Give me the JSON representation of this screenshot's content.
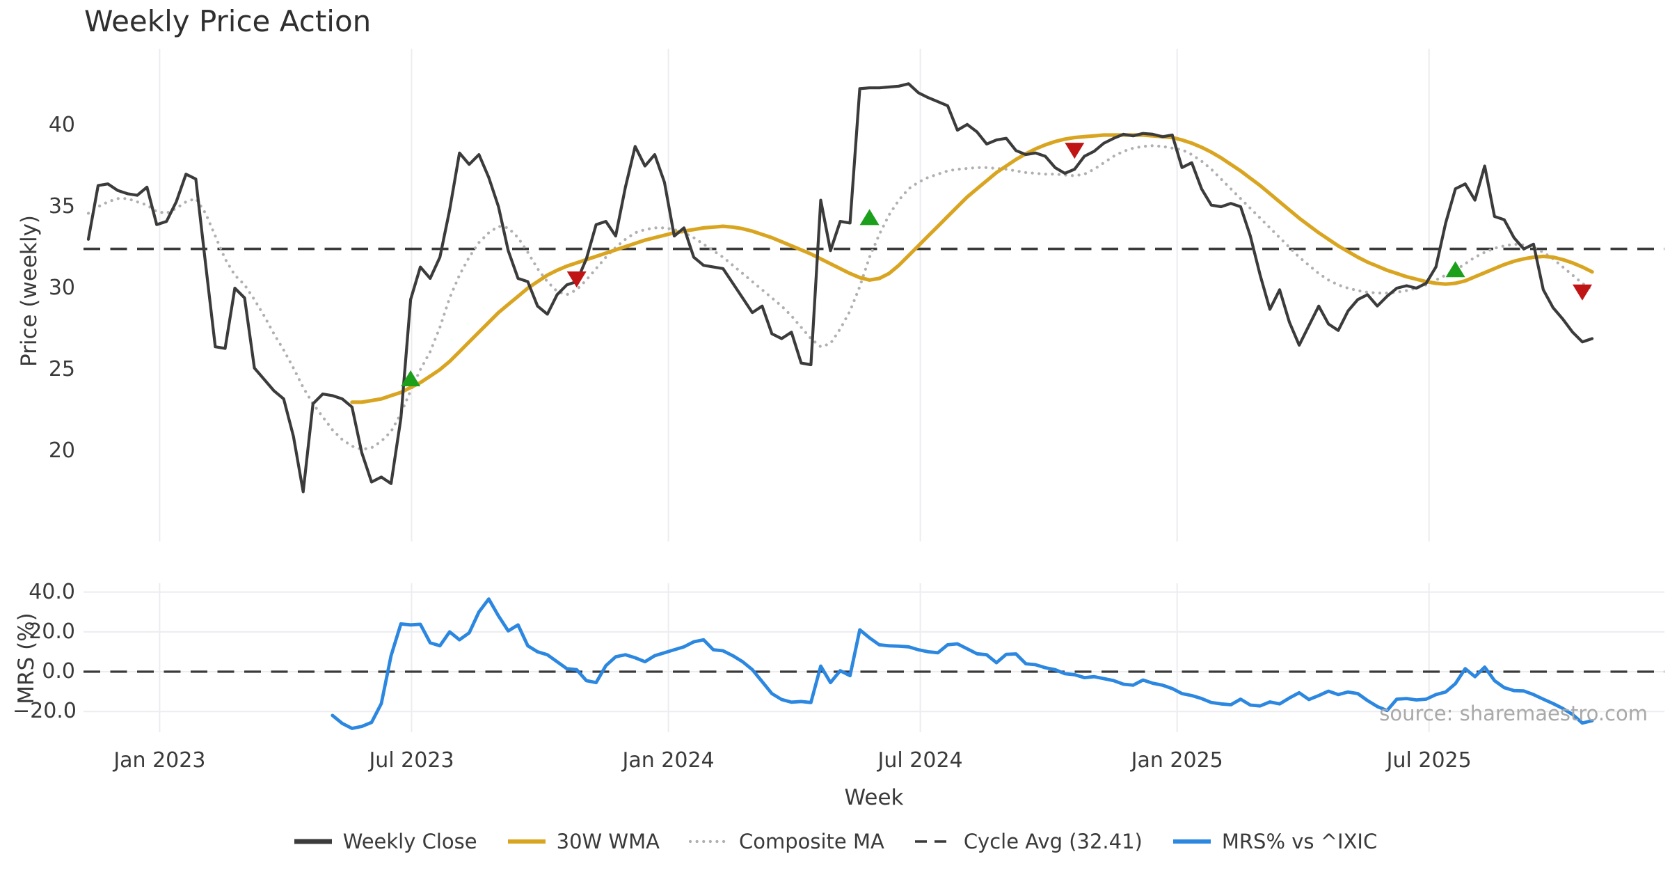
{
  "title": "Weekly Price Action",
  "source_note": "source: sharemaestro.com",
  "colors": {
    "weekly_close": "#3b3b3b",
    "wma_30w": "#d9a521",
    "composite_ma": "#b0b0b0",
    "cycle_avg": "#3a3a3a",
    "mrs": "#2b87e0",
    "buy_signal": "#1ca01c",
    "sell_signal": "#c01515",
    "gridline": "#ececf1",
    "source_text": "#a9a9a9"
  },
  "chart_data": {
    "type": "line",
    "title": "Weekly Price Action",
    "xlabel": "Week",
    "n_weeks": 155,
    "x_ticks": [
      {
        "week": 7.3,
        "label": "Jan 2023"
      },
      {
        "week": 33.1,
        "label": "Jul 2023"
      },
      {
        "week": 59.4,
        "label": "Jan 2024"
      },
      {
        "week": 85.2,
        "label": "Jul 2024"
      },
      {
        "week": 111.5,
        "label": "Jan 2025"
      },
      {
        "week": 137.3,
        "label": "Jul 2025"
      }
    ],
    "panels": [
      {
        "name": "price",
        "ylabel": "Price (weekly)",
        "ylim": [
          14.4,
          44.7
        ],
        "y_ticks": [
          {
            "v": 20,
            "label": "20"
          },
          {
            "v": 25,
            "label": "25"
          },
          {
            "v": 30,
            "label": "30"
          },
          {
            "v": 35,
            "label": "35"
          },
          {
            "v": 40,
            "label": "40"
          }
        ],
        "cycle_avg": 32.41,
        "grid": "vertical-only",
        "series": [
          {
            "name": "Weekly Close",
            "style": "solid",
            "start_week": 0,
            "values": [
              33.0,
              36.3,
              36.4,
              36.0,
              35.8,
              35.7,
              36.2,
              33.9,
              34.1,
              35.3,
              37.0,
              36.7,
              31.5,
              26.4,
              26.3,
              30.0,
              29.4,
              25.1,
              24.4,
              23.7,
              23.2,
              20.9,
              17.5,
              22.9,
              23.5,
              23.4,
              23.2,
              22.7,
              19.9,
              18.1,
              18.4,
              18.0,
              22.0,
              29.3,
              31.3,
              30.6,
              31.9,
              34.8,
              38.3,
              37.6,
              38.2,
              36.8,
              35.0,
              32.3,
              30.6,
              30.4,
              28.9,
              28.4,
              29.6,
              30.2,
              30.4,
              31.8,
              33.9,
              34.1,
              33.2,
              36.2,
              38.7,
              37.5,
              38.2,
              36.5,
              33.2,
              33.7,
              31.9,
              31.4,
              31.3,
              31.2,
              30.3,
              29.4,
              28.5,
              28.9,
              27.2,
              26.9,
              27.3,
              25.4,
              25.3,
              35.4,
              32.3,
              34.1,
              34.0,
              42.25,
              42.3,
              42.3,
              42.35,
              42.4,
              42.55,
              42.0,
              41.7,
              41.45,
              41.2,
              39.7,
              40.05,
              39.6,
              38.85,
              39.1,
              39.2,
              38.45,
              38.2,
              38.3,
              38.1,
              37.4,
              37.05,
              37.3,
              38.1,
              38.4,
              38.9,
              39.2,
              39.45,
              39.35,
              39.5,
              39.45,
              39.3,
              39.4,
              37.4,
              37.7,
              36.1,
              35.1,
              35.0,
              35.2,
              35.0,
              33.2,
              30.8,
              28.7,
              29.9,
              27.9,
              26.5,
              27.7,
              28.9,
              27.8,
              27.4,
              28.6,
              29.3,
              29.6,
              28.9,
              29.5,
              30.0,
              30.15,
              30.0,
              30.3,
              31.3,
              34.0,
              36.1,
              36.4,
              35.4,
              37.5,
              34.4,
              34.2,
              33.1,
              32.4,
              32.7,
              29.9,
              28.8,
              28.1,
              27.3,
              26.7,
              26.9
            ]
          },
          {
            "name": "30W WMA",
            "style": "solid",
            "start_week": 27,
            "values": [
              23.0,
              23.0,
              23.1,
              23.2,
              23.4,
              23.6,
              23.9,
              24.2,
              24.6,
              25.0,
              25.5,
              26.1,
              26.7,
              27.3,
              27.9,
              28.5,
              29.0,
              29.5,
              30.0,
              30.4,
              30.8,
              31.1,
              31.35,
              31.55,
              31.75,
              31.95,
              32.15,
              32.35,
              32.55,
              32.75,
              32.95,
              33.1,
              33.25,
              33.4,
              33.5,
              33.6,
              33.7,
              33.75,
              33.8,
              33.75,
              33.65,
              33.5,
              33.3,
              33.1,
              32.85,
              32.6,
              32.35,
              32.1,
              31.8,
              31.5,
              31.2,
              30.9,
              30.65,
              30.5,
              30.6,
              30.9,
              31.4,
              32.0,
              32.6,
              33.2,
              33.8,
              34.4,
              35.0,
              35.6,
              36.1,
              36.6,
              37.1,
              37.5,
              37.9,
              38.25,
              38.55,
              38.8,
              39.0,
              39.15,
              39.25,
              39.3,
              39.35,
              39.4,
              39.4,
              39.4,
              39.4,
              39.4,
              39.35,
              39.3,
              39.25,
              39.1,
              38.9,
              38.65,
              38.35,
              38.0,
              37.6,
              37.2,
              36.75,
              36.3,
              35.8,
              35.3,
              34.8,
              34.3,
              33.85,
              33.4,
              33.0,
              32.6,
              32.25,
              31.9,
              31.6,
              31.35,
              31.1,
              30.9,
              30.7,
              30.55,
              30.4,
              30.3,
              30.25,
              30.3,
              30.45,
              30.7,
              30.95,
              31.2,
              31.45,
              31.65,
              31.8,
              31.9,
              31.95,
              31.9,
              31.75,
              31.55,
              31.3,
              31.0
            ]
          },
          {
            "name": "Composite MA",
            "style": "dotted",
            "start_week": 0,
            "values": [
              34.6,
              35.0,
              35.3,
              35.5,
              35.5,
              35.3,
              35.1,
              34.7,
              34.6,
              34.9,
              35.3,
              35.5,
              34.6,
              33.2,
              31.8,
              30.8,
              30.2,
              29.3,
              28.3,
              27.2,
              26.2,
              25.1,
              23.9,
              22.9,
              22.1,
              21.3,
              20.7,
              20.3,
              20.1,
              20.2,
              20.6,
              21.2,
              22.3,
              23.7,
              25.0,
              26.1,
              27.6,
              29.4,
              30.8,
              31.9,
              32.8,
              33.4,
              33.8,
              33.7,
              33.1,
              32.2,
              31.2,
              30.4,
              29.8,
              29.6,
              29.9,
              30.5,
              31.2,
              31.9,
              32.5,
              33.0,
              33.4,
              33.6,
              33.7,
              33.7,
              33.6,
              33.4,
              33.1,
              32.7,
              32.3,
              31.9,
              31.4,
              30.9,
              30.4,
              29.9,
              29.4,
              28.9,
              28.3,
              27.6,
              26.9,
              26.4,
              26.6,
              27.5,
              28.6,
              30.1,
              31.9,
              33.3,
              34.5,
              35.4,
              36.1,
              36.5,
              36.8,
              37.0,
              37.2,
              37.3,
              37.35,
              37.4,
              37.4,
              37.35,
              37.3,
              37.2,
              37.1,
              37.05,
              37.0,
              37.0,
              36.95,
              36.9,
              37.0,
              37.3,
              37.7,
              38.1,
              38.4,
              38.6,
              38.7,
              38.75,
              38.7,
              38.6,
              38.5,
              38.2,
              37.8,
              37.3,
              36.7,
              36.1,
              35.5,
              34.9,
              34.3,
              33.7,
              33.1,
              32.5,
              31.9,
              31.4,
              30.9,
              30.5,
              30.2,
              30.0,
              29.85,
              29.75,
              29.7,
              29.7,
              29.75,
              29.85,
              30.0,
              30.2,
              30.5,
              30.8,
              31.1,
              31.5,
              31.9,
              32.2,
              32.45,
              32.6,
              32.7,
              32.65,
              32.5,
              32.2,
              31.8,
              31.3,
              30.8,
              30.3,
              29.9
            ]
          }
        ],
        "signals": {
          "buy": [
            {
              "week": 33,
              "price": 24.4
            },
            {
              "week": 80,
              "price": 34.3
            },
            {
              "week": 140,
              "price": 31.1
            }
          ],
          "sell": [
            {
              "week": 50,
              "price": 30.6
            },
            {
              "week": 101,
              "price": 38.5
            },
            {
              "week": 153,
              "price": 29.8
            }
          ]
        }
      },
      {
        "name": "mrs",
        "ylabel": "MRS (%)",
        "ylim": [
          -30.4,
          44.4
        ],
        "y_ticks": [
          {
            "v": -20,
            "label": "−20.0"
          },
          {
            "v": 0,
            "label": "0.0"
          },
          {
            "v": 20,
            "label": "20.0"
          },
          {
            "v": 40,
            "label": "40.0"
          }
        ],
        "zero_line": 0,
        "grid": "both",
        "series": [
          {
            "name": "MRS% vs ^IXIC",
            "style": "solid",
            "start_week": 25,
            "values": [
              -22,
              -26,
              -28.5,
              -27.5,
              -25.5,
              -16,
              8,
              24,
              23.5,
              23.8,
              14.5,
              13,
              20,
              16,
              19.5,
              30,
              36.5,
              28,
              20.5,
              23.5,
              13,
              10,
              8.5,
              5,
              1.5,
              1,
              -4.5,
              -5.5,
              3,
              7.5,
              8.5,
              7,
              5,
              8,
              9.5,
              11,
              12.5,
              15,
              16,
              11,
              10.5,
              8,
              5,
              1,
              -5,
              -11,
              -14,
              -15.3,
              -15,
              -15.5,
              2.8,
              -5.5,
              0.5,
              -2,
              21,
              17,
              13.5,
              13,
              12.8,
              12.5,
              11,
              10,
              9.5,
              13.5,
              14,
              11.5,
              9,
              8.5,
              4.5,
              8.7,
              8.9,
              4,
              3.5,
              2,
              1,
              -1,
              -1.5,
              -3,
              -2.5,
              -3.5,
              -4.5,
              -6.3,
              -6.8,
              -4.2,
              -5.8,
              -6.8,
              -8.5,
              -11,
              -12,
              -13.5,
              -15.5,
              -16.2,
              -16.6,
              -13.8,
              -16.8,
              -17.2,
              -15.2,
              -16.2,
              -13.2,
              -10.6,
              -14,
              -12,
              -9.8,
              -11.5,
              -10.2,
              -11,
              -14.5,
              -17.5,
              -19.5,
              -13.8,
              -13.5,
              -14.2,
              -13.8,
              -11.5,
              -10.2,
              -6,
              1.5,
              -2.5,
              2.3,
              -4.5,
              -8,
              -9.5,
              -9.7,
              -11.5,
              -13.8,
              -16,
              -18.5,
              -21.5,
              -25.8,
              -24.6
            ]
          }
        ]
      }
    ],
    "legend": [
      {
        "label": "Weekly Close",
        "style": "solid",
        "color": "#3b3b3b"
      },
      {
        "label": "30W WMA",
        "style": "solid",
        "color": "#d9a521"
      },
      {
        "label": "Composite MA",
        "style": "dotted",
        "color": "#b0b0b0"
      },
      {
        "label": "Cycle Avg (32.41)",
        "style": "dashed",
        "color": "#3a3a3a"
      },
      {
        "label": "MRS% vs ^IXIC",
        "style": "solid",
        "color": "#2b87e0"
      }
    ],
    "legend_position": "bottom-center",
    "grid": true
  }
}
